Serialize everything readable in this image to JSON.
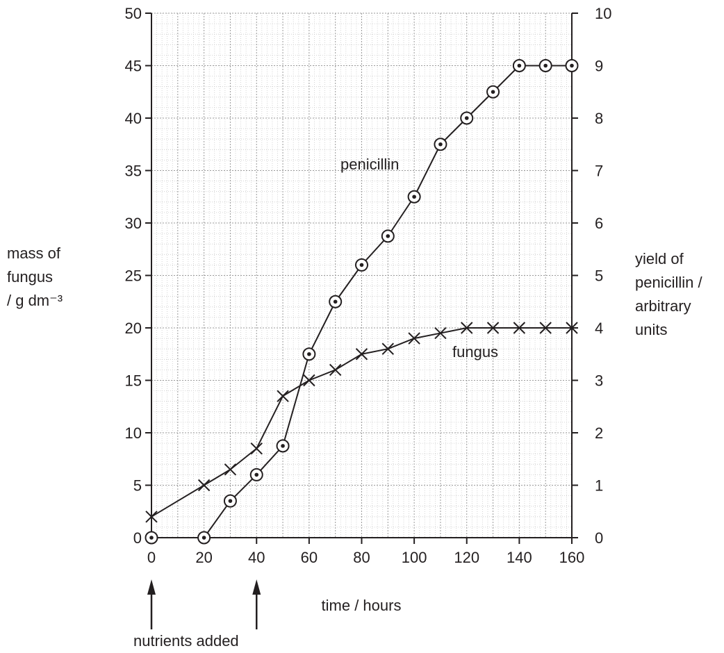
{
  "chart_data": {
    "type": "line",
    "x_label": "time / hours",
    "y_left_label_lines": [
      "mass of",
      "fungus",
      "/ g dm⁻³"
    ],
    "y_right_label_lines": [
      "yield of",
      "penicillin /",
      "arbitrary",
      "units"
    ],
    "x_ticks": [
      0,
      20,
      40,
      60,
      80,
      100,
      120,
      140,
      160
    ],
    "y_left_ticks": [
      0,
      5,
      10,
      15,
      20,
      25,
      30,
      35,
      40,
      45,
      50
    ],
    "y_right_ticks": [
      0,
      1,
      2,
      3,
      4,
      5,
      6,
      7,
      8,
      9,
      10
    ],
    "xlim": [
      0,
      160
    ],
    "y_left_lim": [
      0,
      50
    ],
    "y_right_lim": [
      0,
      10
    ],
    "grid": true,
    "annotation": "nutrients added",
    "annotation_x": [
      0,
      40
    ],
    "series": [
      {
        "name": "fungus",
        "axis": "left",
        "marker": "x",
        "x": [
          0,
          20,
          30,
          40,
          50,
          60,
          70,
          80,
          90,
          100,
          110,
          120,
          130,
          140,
          150,
          160
        ],
        "y": [
          2,
          5,
          6.5,
          8.5,
          13.5,
          15,
          16,
          17.5,
          18,
          19,
          19.5,
          20,
          20,
          20,
          20,
          20
        ]
      },
      {
        "name": "penicillin",
        "axis": "right",
        "marker": "circle-dot",
        "x": [
          0,
          20,
          30,
          40,
          50,
          60,
          70,
          80,
          90,
          100,
          110,
          120,
          130,
          140,
          150,
          160
        ],
        "y": [
          0,
          0,
          0.7,
          1.2,
          1.75,
          3.5,
          4.5,
          5.2,
          5.75,
          6.5,
          7.5,
          8,
          8.5,
          9,
          9,
          9
        ]
      }
    ]
  }
}
